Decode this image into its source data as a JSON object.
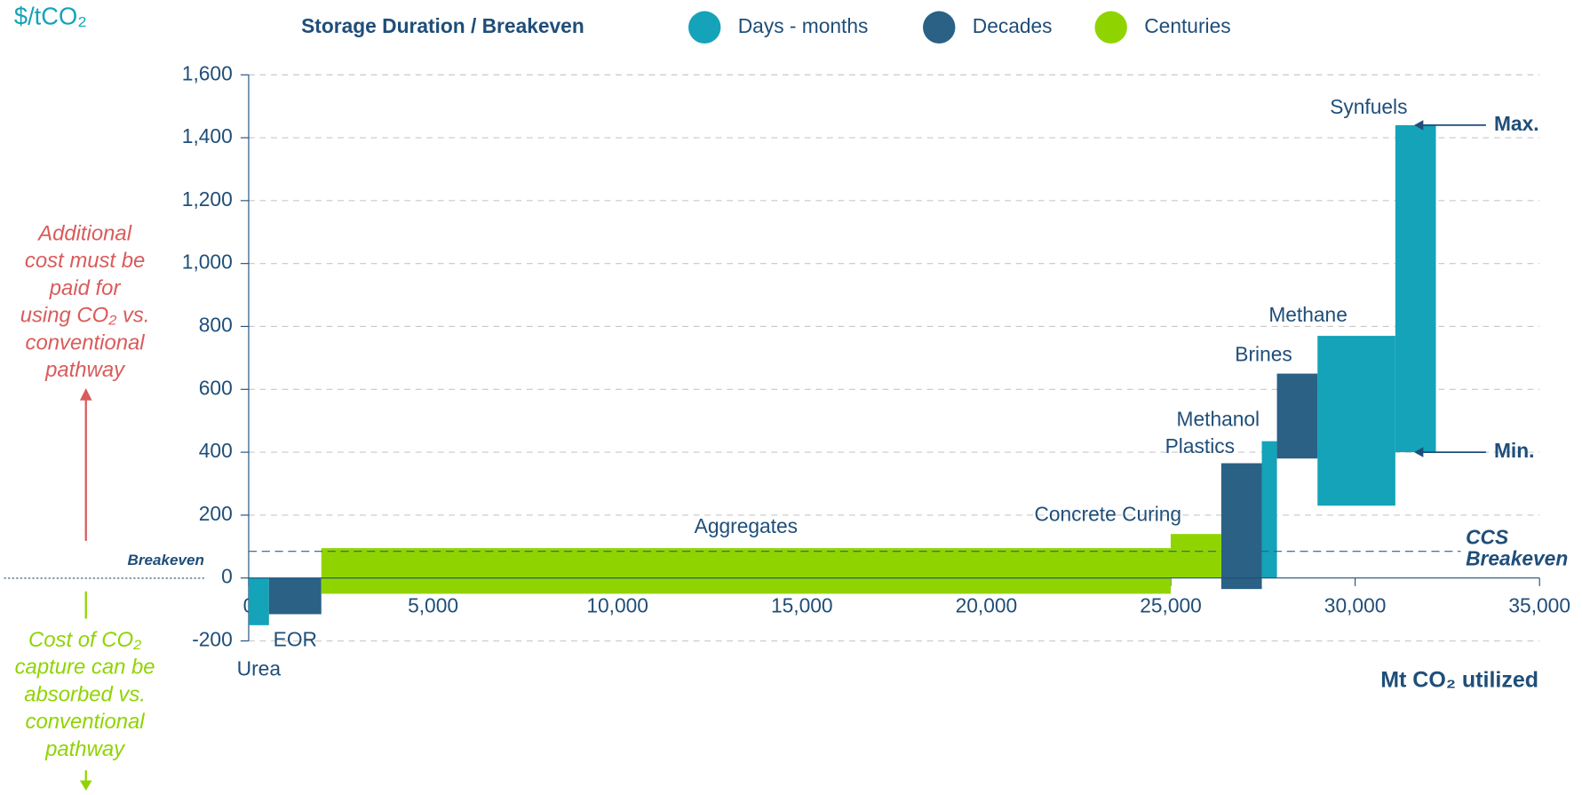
{
  "chart_data": {
    "type": "range_bar",
    "y_axis_label": "$/tCO₂",
    "x_axis_label": "Mt CO₂ utilized",
    "legend_title": "Storage Duration / Breakeven",
    "xlim": [
      0,
      35000
    ],
    "xticks": [
      0,
      {
        "value": 5000,
        "label": "5,000"
      },
      {
        "value": 10000,
        "label": "10,000"
      },
      {
        "value": 15000,
        "label": "15,000"
      },
      {
        "value": 20000,
        "label": "20,000"
      },
      {
        "value": 25000,
        "label": "25,000"
      },
      {
        "value": 30000,
        "label": "30,000"
      },
      {
        "value": 35000,
        "label": "35,000"
      }
    ],
    "ylim": [
      -200,
      1600
    ],
    "yticks": [
      -200,
      0,
      200,
      400,
      600,
      800,
      {
        "value": 1000,
        "label": "1,000"
      },
      {
        "value": 1200,
        "label": "1,200"
      },
      {
        "value": 1400,
        "label": "1,400"
      },
      {
        "value": 1600,
        "label": "1,600"
      }
    ],
    "grid": true,
    "series": [
      {
        "name": "Days - months",
        "color": "#14a3b8",
        "bars": [
          {
            "name": "Urea",
            "x0": 0,
            "x1": 550,
            "low": -150,
            "high": 0
          },
          {
            "name": "Methanol",
            "x0": 27470,
            "x1": 27880,
            "low": 0,
            "high": 435
          },
          {
            "name": "Methane",
            "x0": 28980,
            "x1": 31090,
            "low": 230,
            "high": 770
          },
          {
            "name": "Synfuels",
            "x0": 31090,
            "x1": 32190,
            "low": 400,
            "high": 1440
          }
        ]
      },
      {
        "name": "Decades",
        "color": "#2a6185",
        "bars": [
          {
            "name": "EOR",
            "x0": 550,
            "x1": 1970,
            "low": -115,
            "high": 0
          },
          {
            "name": "Plastics",
            "x0": 26370,
            "x1": 27470,
            "low": -35,
            "high": 365
          },
          {
            "name": "Brines",
            "x0": 27880,
            "x1": 28980,
            "low": 380,
            "high": 650
          }
        ]
      },
      {
        "name": "Centuries",
        "color": "#8fd400",
        "bars": [
          {
            "name": "Aggregates",
            "x0": 1970,
            "x1": 25000,
            "low": -50,
            "high": 95
          },
          {
            "name": "Concrete Curing",
            "x0": 25000,
            "x1": 26370,
            "low": 0,
            "high": 140
          }
        ]
      }
    ],
    "ccs_breakeven": {
      "value": 85,
      "label": [
        "CCS",
        "Breakeven"
      ]
    },
    "max_label": "Max.",
    "min_label": "Min.",
    "breakeven_label": "Breakeven",
    "annotation_above": [
      "Additional",
      "cost must be",
      "paid for",
      "using CO₂ vs.",
      "conventional",
      "pathway"
    ],
    "annotation_below": [
      "Cost of CO₂",
      "capture can be",
      "absorbed vs.",
      "conventional",
      "pathway"
    ]
  }
}
